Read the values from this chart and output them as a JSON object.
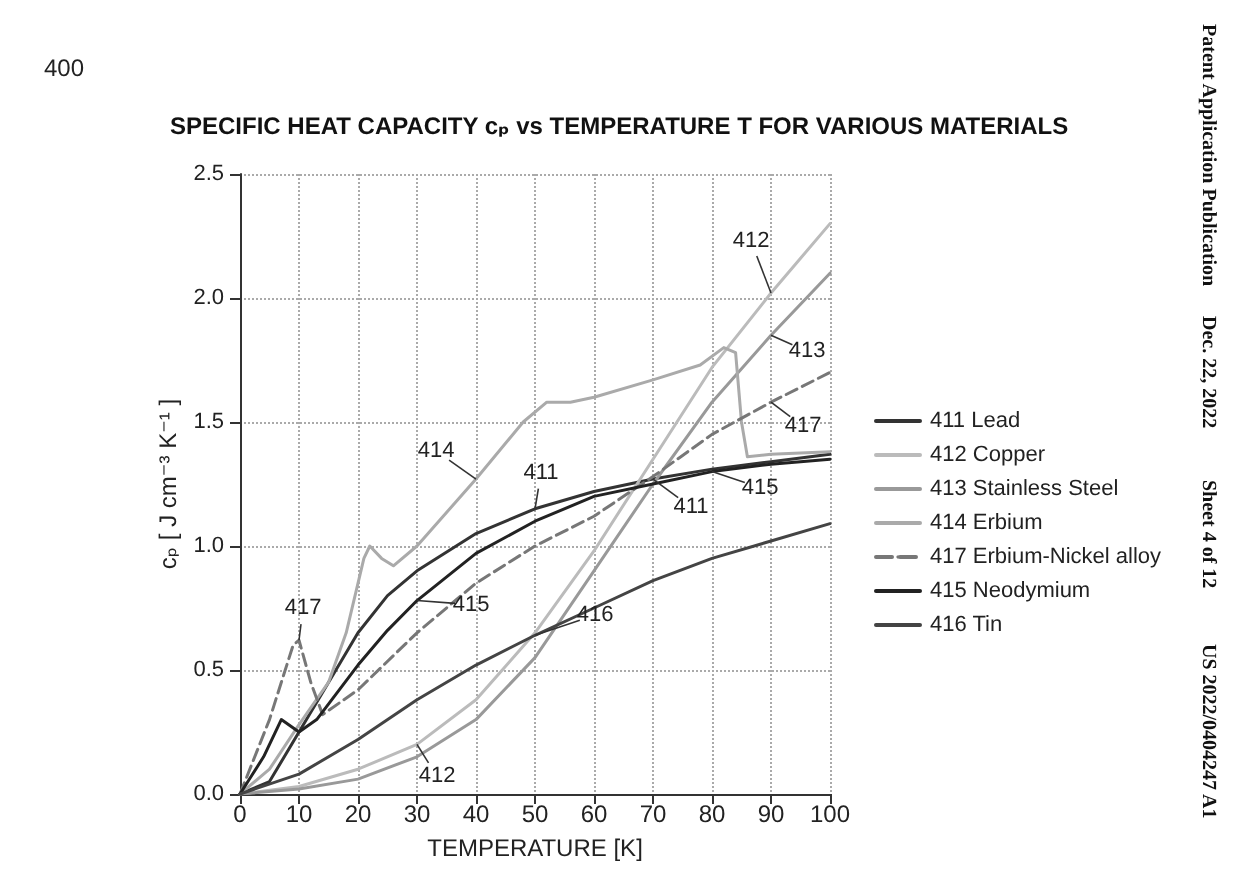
{
  "chart_data": {
    "type": "line",
    "title": "SPECIFIC HEAT CAPACITY cₚ vs TEMPERATURE T FOR VARIOUS MATERIALS",
    "xlabel": "TEMPERATURE [K]",
    "ylabel": "cₚ [ J cm⁻³ K⁻¹ ]",
    "xlim": [
      0,
      100
    ],
    "xticks": [
      0,
      10,
      20,
      30,
      40,
      50,
      60,
      70,
      80,
      90,
      100
    ],
    "ylim": [
      0,
      2.5
    ],
    "yticks": [
      {
        "value": 0,
        "label": "0.0"
      },
      0.5,
      {
        "value": 1,
        "label": "1.0"
      },
      1.5,
      {
        "value": 2,
        "label": "2.0"
      },
      2.5
    ],
    "grid": true,
    "legend": "right",
    "marker": "none",
    "series": [
      {
        "name": "411 Lead",
        "color": "#333333",
        "x": [
          0,
          5,
          10,
          15,
          20,
          25,
          30,
          40,
          50,
          60,
          70,
          80,
          90,
          100
        ],
        "values": [
          0,
          0.05,
          0.25,
          0.45,
          0.65,
          0.8,
          0.9,
          1.05,
          1.15,
          1.22,
          1.27,
          1.31,
          1.34,
          1.37
        ]
      },
      {
        "name": "412 Copper",
        "color": "#bbbbbb",
        "x": [
          0,
          10,
          20,
          30,
          40,
          50,
          60,
          70,
          80,
          90,
          100
        ],
        "values": [
          0,
          0.03,
          0.1,
          0.2,
          0.38,
          0.65,
          0.98,
          1.35,
          1.72,
          2.02,
          2.3
        ]
      },
      {
        "name": "413 Stainless Steel",
        "color": "#999999",
        "x": [
          0,
          10,
          20,
          30,
          40,
          50,
          60,
          70,
          80,
          90,
          100
        ],
        "values": [
          0,
          0.02,
          0.06,
          0.15,
          0.3,
          0.55,
          0.9,
          1.25,
          1.58,
          1.85,
          2.1
        ]
      },
      {
        "name": "414 Erbium",
        "color": "#aaaaaa",
        "x": [
          0,
          5,
          10,
          15,
          18,
          21,
          22,
          24,
          26,
          30,
          40,
          48,
          52,
          56,
          60,
          70,
          78,
          82,
          84,
          85,
          86,
          90,
          100
        ],
        "values": [
          0,
          0.1,
          0.28,
          0.45,
          0.65,
          0.95,
          1.0,
          0.95,
          0.92,
          1.0,
          1.27,
          1.5,
          1.58,
          1.58,
          1.6,
          1.67,
          1.73,
          1.8,
          1.78,
          1.5,
          1.36,
          1.37,
          1.38
        ]
      },
      {
        "name": "417 Erbium-Nickel alloy",
        "color": "#777777",
        "line_style": "dashed",
        "x": [
          0,
          5,
          9,
          10,
          12,
          14,
          20,
          30,
          40,
          50,
          60,
          70,
          80,
          90,
          100
        ],
        "values": [
          0,
          0.3,
          0.6,
          0.62,
          0.45,
          0.32,
          0.42,
          0.65,
          0.85,
          1.0,
          1.12,
          1.28,
          1.45,
          1.58,
          1.7
        ]
      },
      {
        "name": "415 Neodymium",
        "color": "#222222",
        "x": [
          0,
          4,
          7,
          10,
          13,
          20,
          25,
          30,
          40,
          50,
          60,
          70,
          80,
          90,
          100
        ],
        "values": [
          0,
          0.15,
          0.3,
          0.25,
          0.3,
          0.52,
          0.66,
          0.78,
          0.97,
          1.1,
          1.2,
          1.25,
          1.3,
          1.33,
          1.35
        ]
      },
      {
        "name": "416 Tin",
        "color": "#444444",
        "x": [
          0,
          10,
          20,
          30,
          40,
          50,
          60,
          70,
          80,
          90,
          100
        ],
        "values": [
          0,
          0.08,
          0.22,
          0.38,
          0.52,
          0.64,
          0.75,
          0.86,
          0.95,
          1.02,
          1.09
        ]
      }
    ],
    "annotations": [
      {
        "text": "412",
        "x": 90,
        "y": 2.02
      },
      {
        "text": "413",
        "x": 90,
        "y": 1.85
      },
      {
        "text": "417",
        "x": 90,
        "y": 1.58
      },
      {
        "text": "415",
        "x": 80,
        "y": 1.3
      },
      {
        "text": "411",
        "x": 70,
        "y": 1.27
      },
      {
        "text": "411",
        "x": 50,
        "y": 1.15
      },
      {
        "text": "414",
        "x": 40,
        "y": 1.27
      },
      {
        "text": "417",
        "x": 10,
        "y": 0.62
      },
      {
        "text": "415",
        "x": 30,
        "y": 0.78
      },
      {
        "text": "416",
        "x": 50,
        "y": 0.64
      },
      {
        "text": "412",
        "x": 30,
        "y": 0.2
      },
      "400",
      "Patent Application Publication",
      "Dec. 22, 2022",
      "Sheet 4 of 12",
      "US 2022/0404247 A1"
    ]
  }
}
